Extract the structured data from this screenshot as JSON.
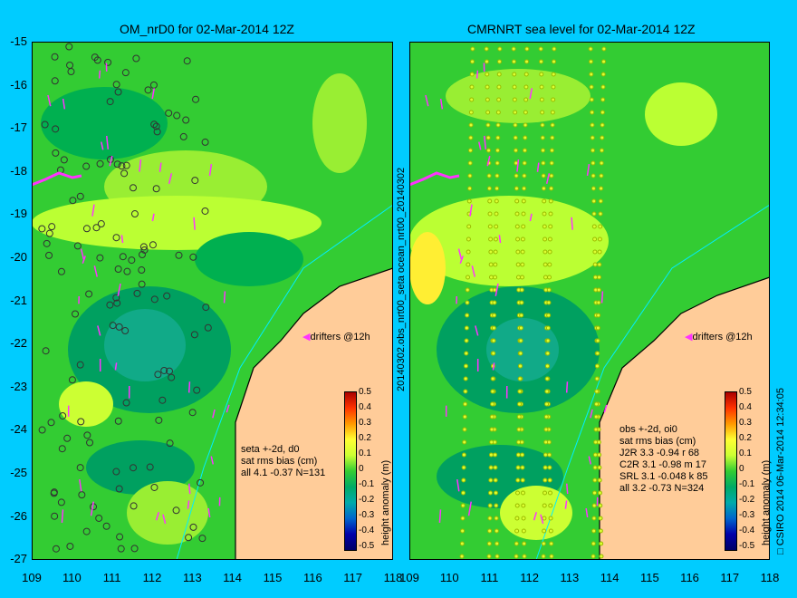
{
  "left_panel": {
    "title": "OM_nrD0 for 02-Mar-2014 12Z",
    "drifters_label": "drifters @12h",
    "stats": [
      "seta +-2d, d0",
      "sat rms bias (cm)",
      "all 4.1 -0.37 N=131"
    ]
  },
  "right_panel": {
    "title": "CMRNRT sea level  for 02-Mar-2014 12Z",
    "drifters_label": "drifters @12h",
    "stats": [
      "obs +-2d, oi0",
      "sat rms bias (cm)",
      "J2R   3.3 -0.94 r 68",
      "C2R   3.1 -0.98 m 17",
      "SRL   3.1 -0.048 k 85",
      "all   3.2 -0.73 N=324"
    ]
  },
  "side_labels": {
    "middle": "20140302.obs_nrt00_seta     ocean_nrt00_20140302",
    "right": "□ CSIRO 2014   06-Mar-2014 12:34:05"
  },
  "colorbar": {
    "label": "height anomaly (m)",
    "ticks": [
      "0.5",
      "0.4",
      "0.3",
      "0.2",
      "0.1",
      "0",
      "-0.1",
      "-0.2",
      "-0.3",
      "-0.4",
      "-0.5"
    ]
  },
  "axes": {
    "x_ticks": [
      "109",
      "110",
      "111",
      "112",
      "113",
      "114",
      "115",
      "116",
      "117",
      "118"
    ],
    "y_ticks": [
      "-15",
      "-16",
      "-17",
      "-18",
      "-19",
      "-20",
      "-21",
      "-22",
      "-23",
      "-24",
      "-25",
      "-26",
      "-27"
    ],
    "lon_range": [
      109,
      118
    ],
    "lat_range": [
      -27,
      -15
    ]
  },
  "colors": {
    "background": "#00ccff",
    "land": "#ffcc99",
    "drifter": "#ff33ff",
    "contour_low": "#00a040",
    "contour_mid": "#33cc33",
    "contour_high": "#ccff33"
  }
}
